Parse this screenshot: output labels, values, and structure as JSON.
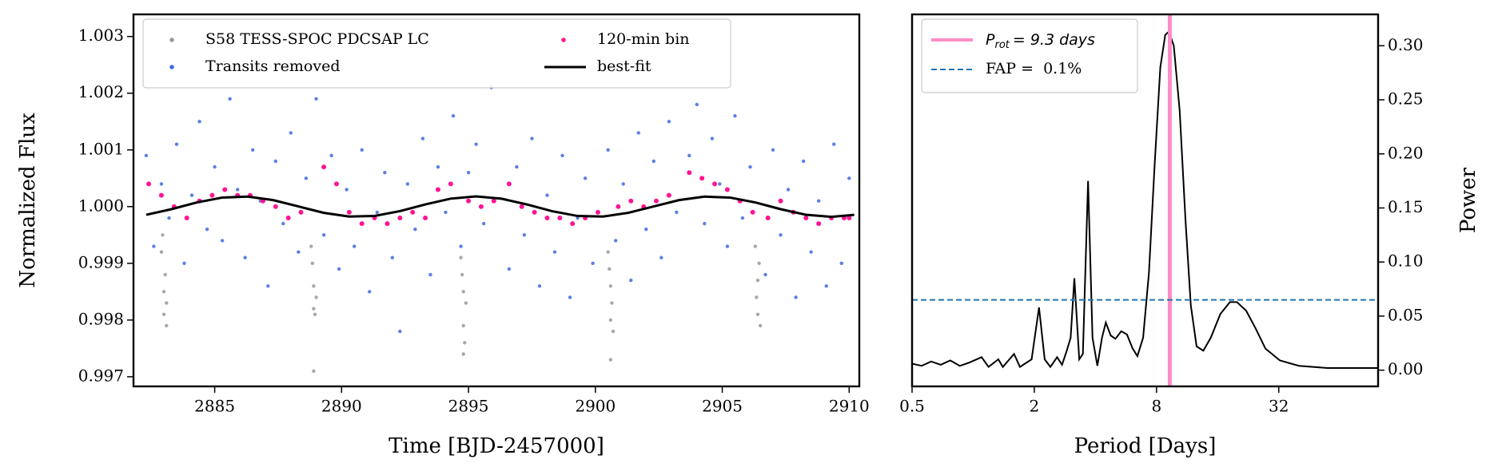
{
  "chart_data": [
    {
      "type": "scatter",
      "xlabel": "Time [BJD-2457000]",
      "ylabel": "Normalized Flux",
      "xlim": [
        2881.8,
        2910.4
      ],
      "ylim": [
        0.99683,
        1.00339
      ],
      "xticks": [
        2885,
        2890,
        2895,
        2900,
        2905,
        2910
      ],
      "yticks": [
        0.997,
        0.998,
        0.999,
        {
          "value": 1,
          "label": "1.000"
        },
        1.001,
        1.002,
        1.003
      ],
      "legend_loc": "upper left",
      "legend_ncol": 2,
      "series": [
        {
          "name": "S58 TESS-SPOC PDCSAP LC",
          "type": "scatter",
          "color": "#999999",
          "x": [
            2882.9,
            2883.0,
            2883.0,
            2883.1,
            2883.05,
            2882.95,
            2883.1,
            2888.8,
            2888.9,
            2888.9,
            2889.0,
            2888.85,
            2888.95,
            2888.9,
            2894.7,
            2894.8,
            2894.8,
            2894.9,
            2894.75,
            2894.85,
            2894.8,
            2900.5,
            2900.6,
            2900.6,
            2900.7,
            2900.55,
            2900.65,
            2900.6,
            2906.3,
            2906.4,
            2906.4,
            2906.5,
            2906.35,
            2906.45
          ],
          "values": [
            0.9992,
            0.9985,
            0.9981,
            0.9979,
            0.9988,
            0.9995,
            0.9983,
            0.9993,
            0.9986,
            0.9982,
            0.9984,
            0.999,
            0.9981,
            0.9971,
            0.9991,
            0.9985,
            0.9979,
            0.9983,
            0.9988,
            0.9976,
            0.9974,
            0.9992,
            0.9986,
            0.998,
            0.9978,
            0.9989,
            0.9983,
            0.9973,
            0.9993,
            0.9987,
            0.9981,
            0.9979,
            0.9984,
            0.999
          ]
        },
        {
          "name": "Transits removed",
          "type": "scatter",
          "color": "#4169e1",
          "x": [
            2882.3,
            2882.6,
            2882.9,
            2883.2,
            2883.5,
            2883.8,
            2884.1,
            2884.4,
            2884.7,
            2885.0,
            2885.3,
            2885.6,
            2885.9,
            2886.2,
            2886.5,
            2886.8,
            2887.1,
            2887.4,
            2887.7,
            2888.0,
            2888.3,
            2888.6,
            2889.0,
            2889.3,
            2889.6,
            2889.9,
            2890.2,
            2890.5,
            2890.8,
            2891.1,
            2891.4,
            2891.7,
            2892.0,
            2892.3,
            2892.6,
            2892.9,
            2893.2,
            2893.5,
            2893.8,
            2894.1,
            2894.4,
            2894.7,
            2895.0,
            2895.3,
            2895.6,
            2895.9,
            2896.6,
            2896.9,
            2897.2,
            2897.5,
            2897.8,
            2898.1,
            2898.4,
            2898.7,
            2899.0,
            2899.3,
            2899.6,
            2899.9,
            2900.5,
            2900.8,
            2901.1,
            2901.4,
            2901.7,
            2902.0,
            2902.3,
            2902.6,
            2902.9,
            2903.2,
            2903.7,
            2904.0,
            2904.3,
            2904.6,
            2904.9,
            2905.2,
            2905.5,
            2905.8,
            2906.1,
            2906.7,
            2907.0,
            2907.3,
            2907.6,
            2907.9,
            2908.2,
            2908.5,
            2908.8,
            2909.1,
            2909.4,
            2909.7,
            2910.0
          ],
          "values": [
            1.0009,
            0.9993,
            1.0004,
            0.9998,
            1.0011,
            0.999,
            1.0002,
            1.0015,
            0.9996,
            1.0007,
            0.9994,
            1.0019,
            1.0003,
            0.9991,
            1.001,
            1.0001,
            0.9986,
            1.0008,
            0.9997,
            1.0013,
            0.9992,
            1.0005,
            1.0019,
            0.9995,
            1.0009,
            0.9989,
            1.0003,
            0.9993,
            1.001,
            0.9985,
            0.9999,
            1.0006,
            0.9991,
            0.9978,
            1.0004,
            0.9996,
            1.0012,
            0.9988,
            1.0007,
            0.9999,
            1.0016,
            0.9993,
            1.0006,
            1.0011,
            0.9997,
            1.0021,
            0.9989,
            1.0007,
            0.9995,
            1.0012,
            0.9986,
            1.0002,
            0.9992,
            1.0009,
            0.9984,
            0.9998,
            1.0005,
            0.999,
            1.001,
            0.9994,
            1.0004,
            0.9987,
            1.0013,
            0.9996,
            1.0008,
            0.9991,
            1.0015,
            0.9999,
            1.0009,
            1.0018,
            0.9997,
            1.0012,
            1.0004,
            0.9993,
            1.0016,
            0.9998,
            1.0007,
            0.9988,
            1.001,
            0.9995,
            1.0003,
            0.9984,
            1.0008,
            0.9992,
            1.0001,
            0.9986,
            1.0011,
            0.999,
            1.0005
          ]
        },
        {
          "name": "120-min bin",
          "type": "scatter",
          "color": "#ff1493",
          "x": [
            2882.4,
            2882.9,
            2883.4,
            2883.9,
            2884.4,
            2884.9,
            2885.4,
            2885.9,
            2886.4,
            2886.9,
            2887.4,
            2887.9,
            2888.4,
            2889.3,
            2889.8,
            2890.3,
            2890.8,
            2891.3,
            2891.8,
            2892.3,
            2892.8,
            2893.3,
            2893.8,
            2894.3,
            2895.0,
            2895.5,
            2896.0,
            2896.6,
            2897.1,
            2897.6,
            2898.1,
            2898.6,
            2899.1,
            2899.6,
            2900.1,
            2900.9,
            2901.4,
            2901.9,
            2902.4,
            2902.9,
            2903.7,
            2904.2,
            2904.7,
            2905.2,
            2905.7,
            2906.2,
            2906.8,
            2907.3,
            2907.8,
            2908.3,
            2908.8,
            2909.3,
            2909.8,
            2910.0
          ],
          "values": [
            1.0004,
            1.0002,
            1.0,
            0.9998,
            1.0001,
            1.0002,
            1.0003,
            1.0002,
            1.0002,
            1.0001,
            1.0,
            0.9998,
            0.9999,
            1.0007,
            1.0004,
            0.9999,
            0.9997,
            0.9998,
            0.9997,
            0.9998,
            0.9999,
            0.9998,
            1.0003,
            1.0004,
            1.0001,
            1.0,
            1.0001,
            1.0004,
            1.0,
            0.9999,
            0.9998,
            0.9998,
            0.9997,
            0.9998,
            0.9999,
            1.0,
            1.0001,
            1.0,
            1.0001,
            1.0002,
            1.0006,
            1.0005,
            1.0004,
            1.0003,
            1.0001,
            0.9999,
            0.9998,
            1.0001,
            0.9999,
            0.9998,
            0.9997,
            0.9998,
            0.9998,
            0.9998
          ]
        },
        {
          "name": "best-fit",
          "type": "line",
          "color": "#000000",
          "x": [
            2882.3,
            2883.3,
            2884.3,
            2885.3,
            2886.3,
            2887.3,
            2888.3,
            2889.3,
            2890.3,
            2891.3,
            2892.3,
            2893.3,
            2894.3,
            2895.3,
            2896.3,
            2897.3,
            2898.3,
            2899.3,
            2900.3,
            2901.3,
            2902.3,
            2903.3,
            2904.3,
            2905.3,
            2906.3,
            2907.3,
            2908.3,
            2909.3,
            2910.2
          ],
          "values": [
            0.999856,
            0.999955,
            1.000074,
            1.00016,
            1.000176,
            1.000115,
            1.000003,
            0.99989,
            0.999825,
            0.999836,
            0.999921,
            1.000039,
            1.000141,
            1.00018,
            1.00014,
            1.000038,
            0.999919,
            0.999835,
            0.999825,
            0.999891,
            1.000003,
            1.000115,
            1.000176,
            1.00016,
            1.000074,
            0.999955,
            0.999856,
            0.99982,
            0.999855
          ]
        }
      ]
    },
    {
      "type": "line",
      "xscale": "log",
      "xlabel": "Period [Days]",
      "ylabel": "Power",
      "yaxis_side": "right",
      "xlim": [
        0.5,
        98.7
      ],
      "ylim": [
        -0.015,
        0.329
      ],
      "xticks": [
        0.5,
        2,
        8,
        32
      ],
      "yticks": [
        {
          "value": 0,
          "label": "0.00"
        },
        0.05,
        {
          "value": 0.1,
          "label": "0.10"
        },
        0.15,
        {
          "value": 0.2,
          "label": "0.20"
        },
        0.25,
        {
          "value": 0.3,
          "label": "0.30"
        }
      ],
      "legend_loc": "upper left",
      "series": [
        {
          "type": "line",
          "color": "#000000",
          "x": [
            0.5,
            0.557,
            0.621,
            0.692,
            0.771,
            0.859,
            0.957,
            1.1,
            1.19,
            1.33,
            1.4,
            1.59,
            1.7,
            1.94,
            2.11,
            2.25,
            2.4,
            2.59,
            2.74,
            2.89,
            3.02,
            3.15,
            3.33,
            3.47,
            3.68,
            3.87,
            4.09,
            4.31,
            4.5,
            4.76,
            5.02,
            5.36,
            5.72,
            6.1,
            6.44,
            6.87,
            7.34,
            7.83,
            8.35,
            8.83,
            9.2,
            9.73,
            10.4,
            11.1,
            11.8,
            12.6,
            13.6,
            14.8,
            16.5,
            18.4,
            19.9,
            22.1,
            24.7,
            27.5,
            32.4,
            40.2,
            55.6,
            98.7
          ],
          "values": [
            0.006,
            0.004,
            0.008,
            0.005,
            0.009,
            0.004,
            0.007,
            0.012,
            0.003,
            0.01,
            0.003,
            0.015,
            0.003,
            0.01,
            0.058,
            0.01,
            0.003,
            0.012,
            0.005,
            0.018,
            0.03,
            0.085,
            0.01,
            0.015,
            0.175,
            0.03,
            0.004,
            0.03,
            0.044,
            0.032,
            0.029,
            0.036,
            0.033,
            0.02,
            0.013,
            0.03,
            0.09,
            0.19,
            0.28,
            0.31,
            0.313,
            0.3,
            0.24,
            0.14,
            0.06,
            0.022,
            0.018,
            0.03,
            0.052,
            0.063,
            0.063,
            0.055,
            0.038,
            0.02,
            0.009,
            0.004,
            0.002,
            0.002
          ]
        },
        {
          "type": "vline",
          "color": "#ff8cc6",
          "value": 9.3,
          "label_parts": [
            "P",
            "rot",
            "= 9.3 days"
          ]
        },
        {
          "type": "hline",
          "color": "#1f77b4",
          "value": 0.065,
          "dashed": true,
          "name": "FAP =  0.1%"
        }
      ]
    }
  ]
}
